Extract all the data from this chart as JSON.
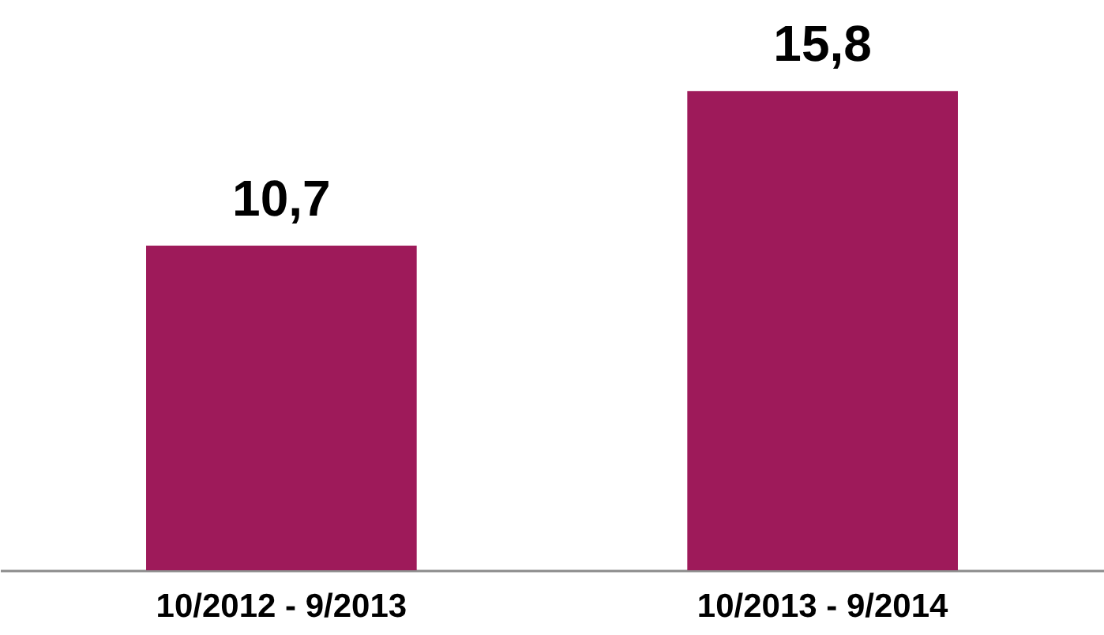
{
  "chart_data": {
    "type": "bar",
    "categories": [
      "10/2012 - 9/2013",
      "10/2013 - 9/2014"
    ],
    "values": [
      10.7,
      15.8
    ],
    "value_labels": [
      "10,7",
      "15,8"
    ],
    "color": "#9e1a5a"
  }
}
